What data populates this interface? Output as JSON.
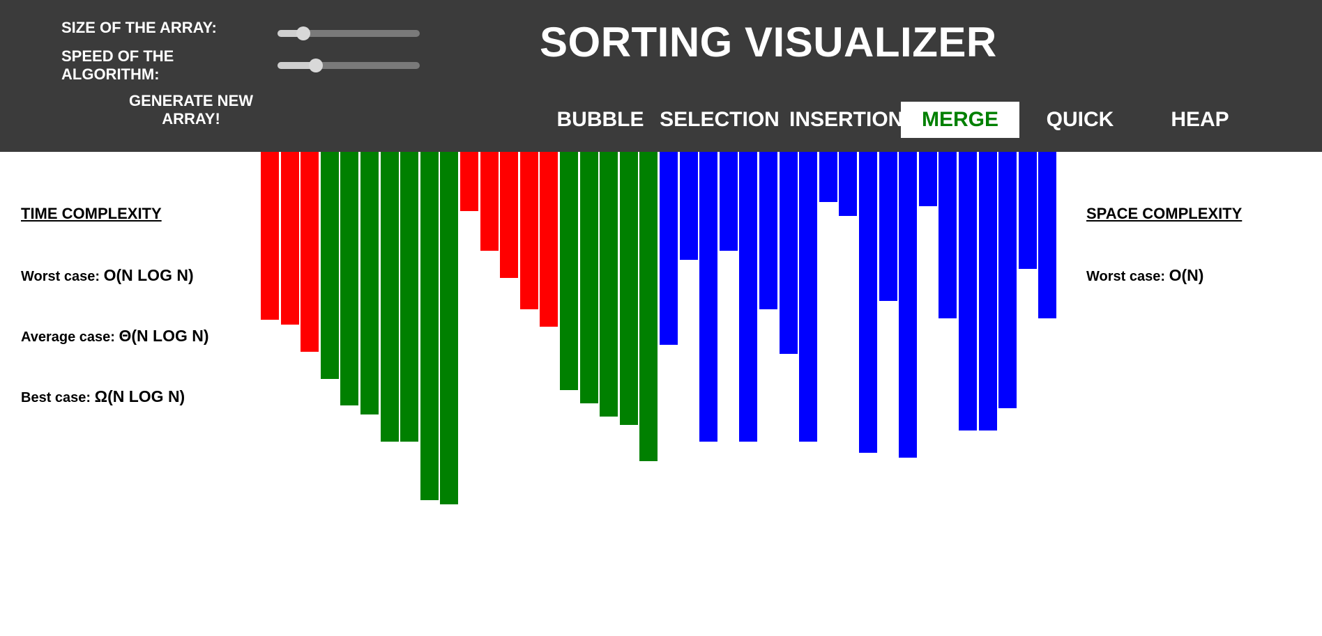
{
  "app": {
    "title": "SORTING VISUALIZER"
  },
  "controls": {
    "size_label": "SIZE OF THE ARRAY:",
    "speed_label": "SPEED OF THE ALGORITHM:",
    "generate_label": "GENERATE NEW ARRAY!",
    "size_slider_level": 0.18,
    "speed_slider_level": 0.27
  },
  "algorithms": {
    "bubble": "BUBBLE",
    "selection": "SELECTION",
    "insertion": "INSERTION",
    "merge": "MERGE",
    "quick": "QUICK",
    "heap": "HEAP",
    "active": "MERGE"
  },
  "time_complexity": {
    "heading": "TIME COMPLEXITY",
    "worst_label": "Worst case:",
    "worst_value": "O(N LOG N)",
    "average_label": "Average case:",
    "average_value": "Θ(N LOG N)",
    "best_label": "Best case:",
    "best_value": "Ω(N LOG N)"
  },
  "space_complexity": {
    "heading": "SPACE COMPLEXITY",
    "worst_label": "Worst case:",
    "worst_value": "O(N)"
  },
  "colors": {
    "header_bg": "#3b3b3b",
    "active_text": "#008000",
    "bar_comparing": "#ff0000",
    "bar_sorted": "#008000",
    "bar_unsorted": "#0000ff"
  },
  "array": {
    "values": [
      241,
      248,
      287,
      326,
      364,
      377,
      416,
      416,
      500,
      506,
      85,
      142,
      181,
      226,
      251,
      342,
      361,
      380,
      392,
      444,
      277,
      155,
      416,
      142,
      416,
      226,
      290,
      416,
      72,
      92,
      432,
      214,
      439,
      78,
      239,
      400,
      400,
      368,
      168,
      239
    ],
    "states": [
      "comparing",
      "comparing",
      "comparing",
      "sorted",
      "sorted",
      "sorted",
      "sorted",
      "sorted",
      "sorted",
      "sorted",
      "comparing",
      "comparing",
      "comparing",
      "comparing",
      "comparing",
      "sorted",
      "sorted",
      "sorted",
      "sorted",
      "sorted",
      "unsorted",
      "unsorted",
      "unsorted",
      "unsorted",
      "unsorted",
      "unsorted",
      "unsorted",
      "unsorted",
      "unsorted",
      "unsorted",
      "unsorted",
      "unsorted",
      "unsorted",
      "unsorted",
      "unsorted",
      "unsorted",
      "unsorted",
      "unsorted",
      "unsorted",
      "unsorted"
    ]
  }
}
